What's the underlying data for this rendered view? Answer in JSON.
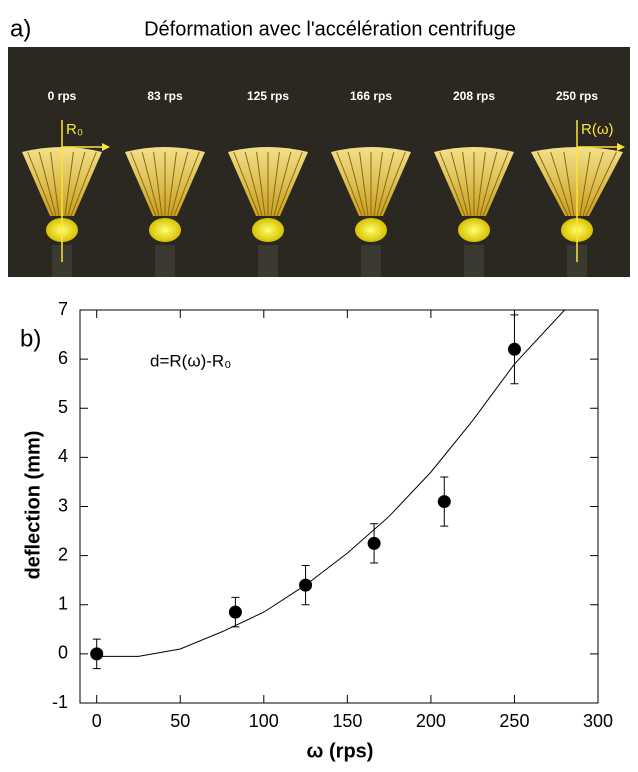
{
  "panel_a": {
    "label": "a)",
    "title": "Déformation avec l'accélération centrifuge",
    "frames": [
      "0 rps",
      "83 rps",
      "125 rps",
      "166 rps",
      "208 rps",
      "250 rps"
    ],
    "start_marker": "R₀",
    "end_marker": "R(ω)"
  },
  "chart_data": {
    "type": "scatter",
    "label": "b)",
    "annotation": "d=R(ω)-R₀",
    "x_label": "ω (rps)",
    "y_label": "deflection (mm)",
    "x": [
      0,
      83,
      125,
      166,
      208,
      250
    ],
    "values": [
      0,
      0.85,
      1.4,
      2.25,
      3.1,
      6.2
    ],
    "errors": [
      0.3,
      0.3,
      0.4,
      0.4,
      0.5,
      0.7
    ],
    "color": "#000000",
    "fit": {
      "x": [
        0,
        25,
        50,
        75,
        100,
        125,
        150,
        175,
        200,
        225,
        250,
        280
      ],
      "values": [
        -0.05,
        -0.05,
        0.1,
        0.45,
        0.85,
        1.4,
        2.05,
        2.8,
        3.7,
        4.75,
        5.9,
        7.0
      ]
    },
    "xlim": [
      -10,
      300
    ],
    "xticks": [
      0,
      50,
      100,
      150,
      200,
      250,
      300
    ],
    "ylim": [
      -1,
      7
    ],
    "yticks": [
      -1,
      0,
      1,
      2,
      3,
      4,
      5,
      6,
      7
    ]
  }
}
